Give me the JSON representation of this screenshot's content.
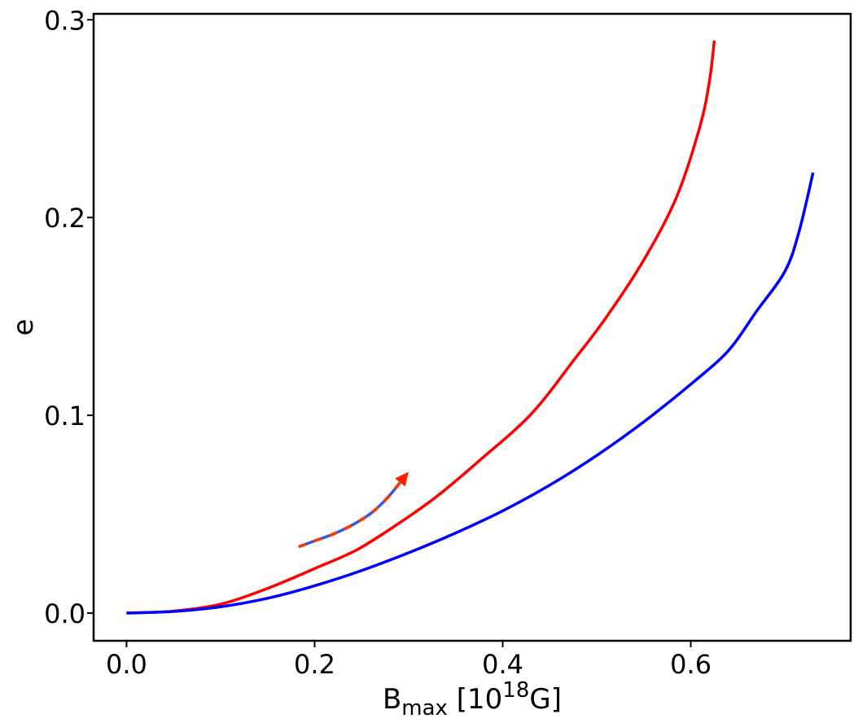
{
  "chart_data": {
    "type": "line",
    "title": "",
    "xlabel": {
      "base": "B",
      "subscript": "max",
      "unit_prefix": " [10",
      "unit_exponent": "18",
      "unit_suffix": "G]"
    },
    "ylabel": "e",
    "xlim": [
      -0.035,
      0.77
    ],
    "ylim": [
      -0.014,
      0.303
    ],
    "xticks": [
      0.0,
      0.2,
      0.4,
      0.6
    ],
    "xtick_labels": [
      "0.0",
      "0.2",
      "0.4",
      "0.6"
    ],
    "yticks": [
      0.0,
      0.1,
      0.2,
      0.3
    ],
    "ytick_labels": [
      "0.0",
      "0.1",
      "0.2",
      "0.3"
    ],
    "grid": false,
    "legend": "none",
    "series": [
      {
        "color": "#ff0000",
        "x": [
          0.0,
          0.05,
          0.1,
          0.15,
          0.2,
          0.245,
          0.29,
          0.33,
          0.375,
          0.43,
          0.475,
          0.51,
          0.55,
          0.585,
          0.61,
          0.62,
          0.625
        ],
        "y": [
          0.0,
          0.001,
          0.0045,
          0.0125,
          0.0225,
          0.032,
          0.0455,
          0.059,
          0.077,
          0.1005,
          0.1275,
          0.1495,
          0.1785,
          0.2105,
          0.2465,
          0.2695,
          0.2895
        ]
      },
      {
        "color": "#0000ff",
        "x": [
          0.0,
          0.05,
          0.1,
          0.15,
          0.2,
          0.25,
          0.3,
          0.35,
          0.4,
          0.45,
          0.5,
          0.55,
          0.6,
          0.64,
          0.67,
          0.7,
          0.715,
          0.73
        ],
        "y": [
          0.0,
          0.0008,
          0.0032,
          0.0075,
          0.0138,
          0.0215,
          0.0305,
          0.0405,
          0.0517,
          0.0647,
          0.0797,
          0.0967,
          0.1157,
          0.1327,
          0.1527,
          0.1727,
          0.1927,
          0.2227
        ]
      }
    ],
    "annotations": [
      {
        "type": "arrow",
        "style": "dashed-red-blue",
        "arrow_color": "#ff2200",
        "x": [
          0.183,
          0.2,
          0.22,
          0.24,
          0.26,
          0.275,
          0.285,
          0.3
        ],
        "y": [
          0.0335,
          0.0365,
          0.04,
          0.0445,
          0.0505,
          0.057,
          0.0625,
          0.0715
        ]
      }
    ]
  }
}
